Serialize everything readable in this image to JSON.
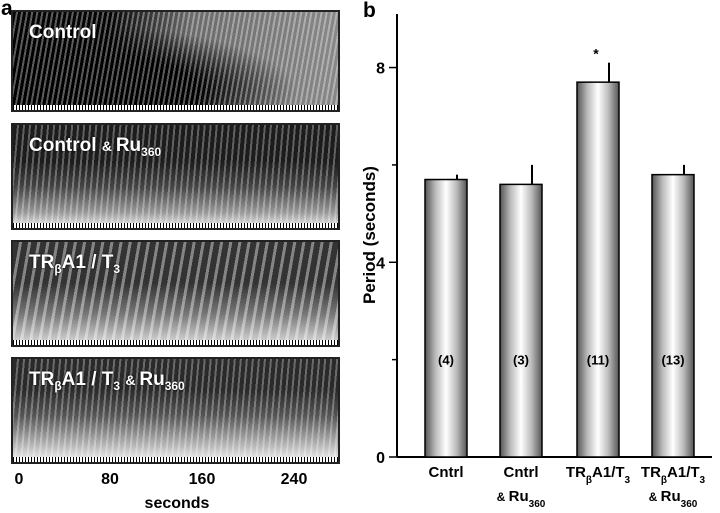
{
  "panel_a": {
    "label": "a",
    "kymographs": [
      {
        "name": "Control",
        "html": "Control"
      },
      {
        "name": "Control & Ru360",
        "html": "Control <span class='small'>&amp; </span>Ru<sub>360</sub>"
      },
      {
        "name": "TRβA1 / T3",
        "html": "TR<sub>β</sub>A1 / T<sub>3</sub>"
      },
      {
        "name": "TRβA1 / T3 & Ru360",
        "html": "TR<sub>β</sub>A1 / T<sub>3</sub> <span class='small'>&amp; </span>Ru<sub>360</sub>"
      }
    ],
    "x_ticks": [
      "0",
      "80",
      "160",
      "240"
    ],
    "x_title": "seconds"
  },
  "panel_b_label": "b",
  "chart_data": {
    "type": "bar",
    "ylabel": "Period (seconds)",
    "ylim": [
      0,
      9.1
    ],
    "yticks": [
      0,
      4,
      8
    ],
    "categories": [
      {
        "line1": "Cntrl",
        "line2": ""
      },
      {
        "line1": "Cntrl",
        "line2": "& Ru360"
      },
      {
        "line1": "TRβA1/T3",
        "line2": ""
      },
      {
        "line1": "TRβA1/T3",
        "line2": "& Ru360"
      }
    ],
    "values": [
      5.7,
      5.6,
      7.7,
      5.8
    ],
    "errors": [
      0.1,
      0.4,
      0.4,
      0.2
    ],
    "n_labels": [
      "(4)",
      "(3)",
      "(11)",
      "(13)"
    ],
    "significance": [
      "",
      "",
      "*",
      ""
    ]
  }
}
